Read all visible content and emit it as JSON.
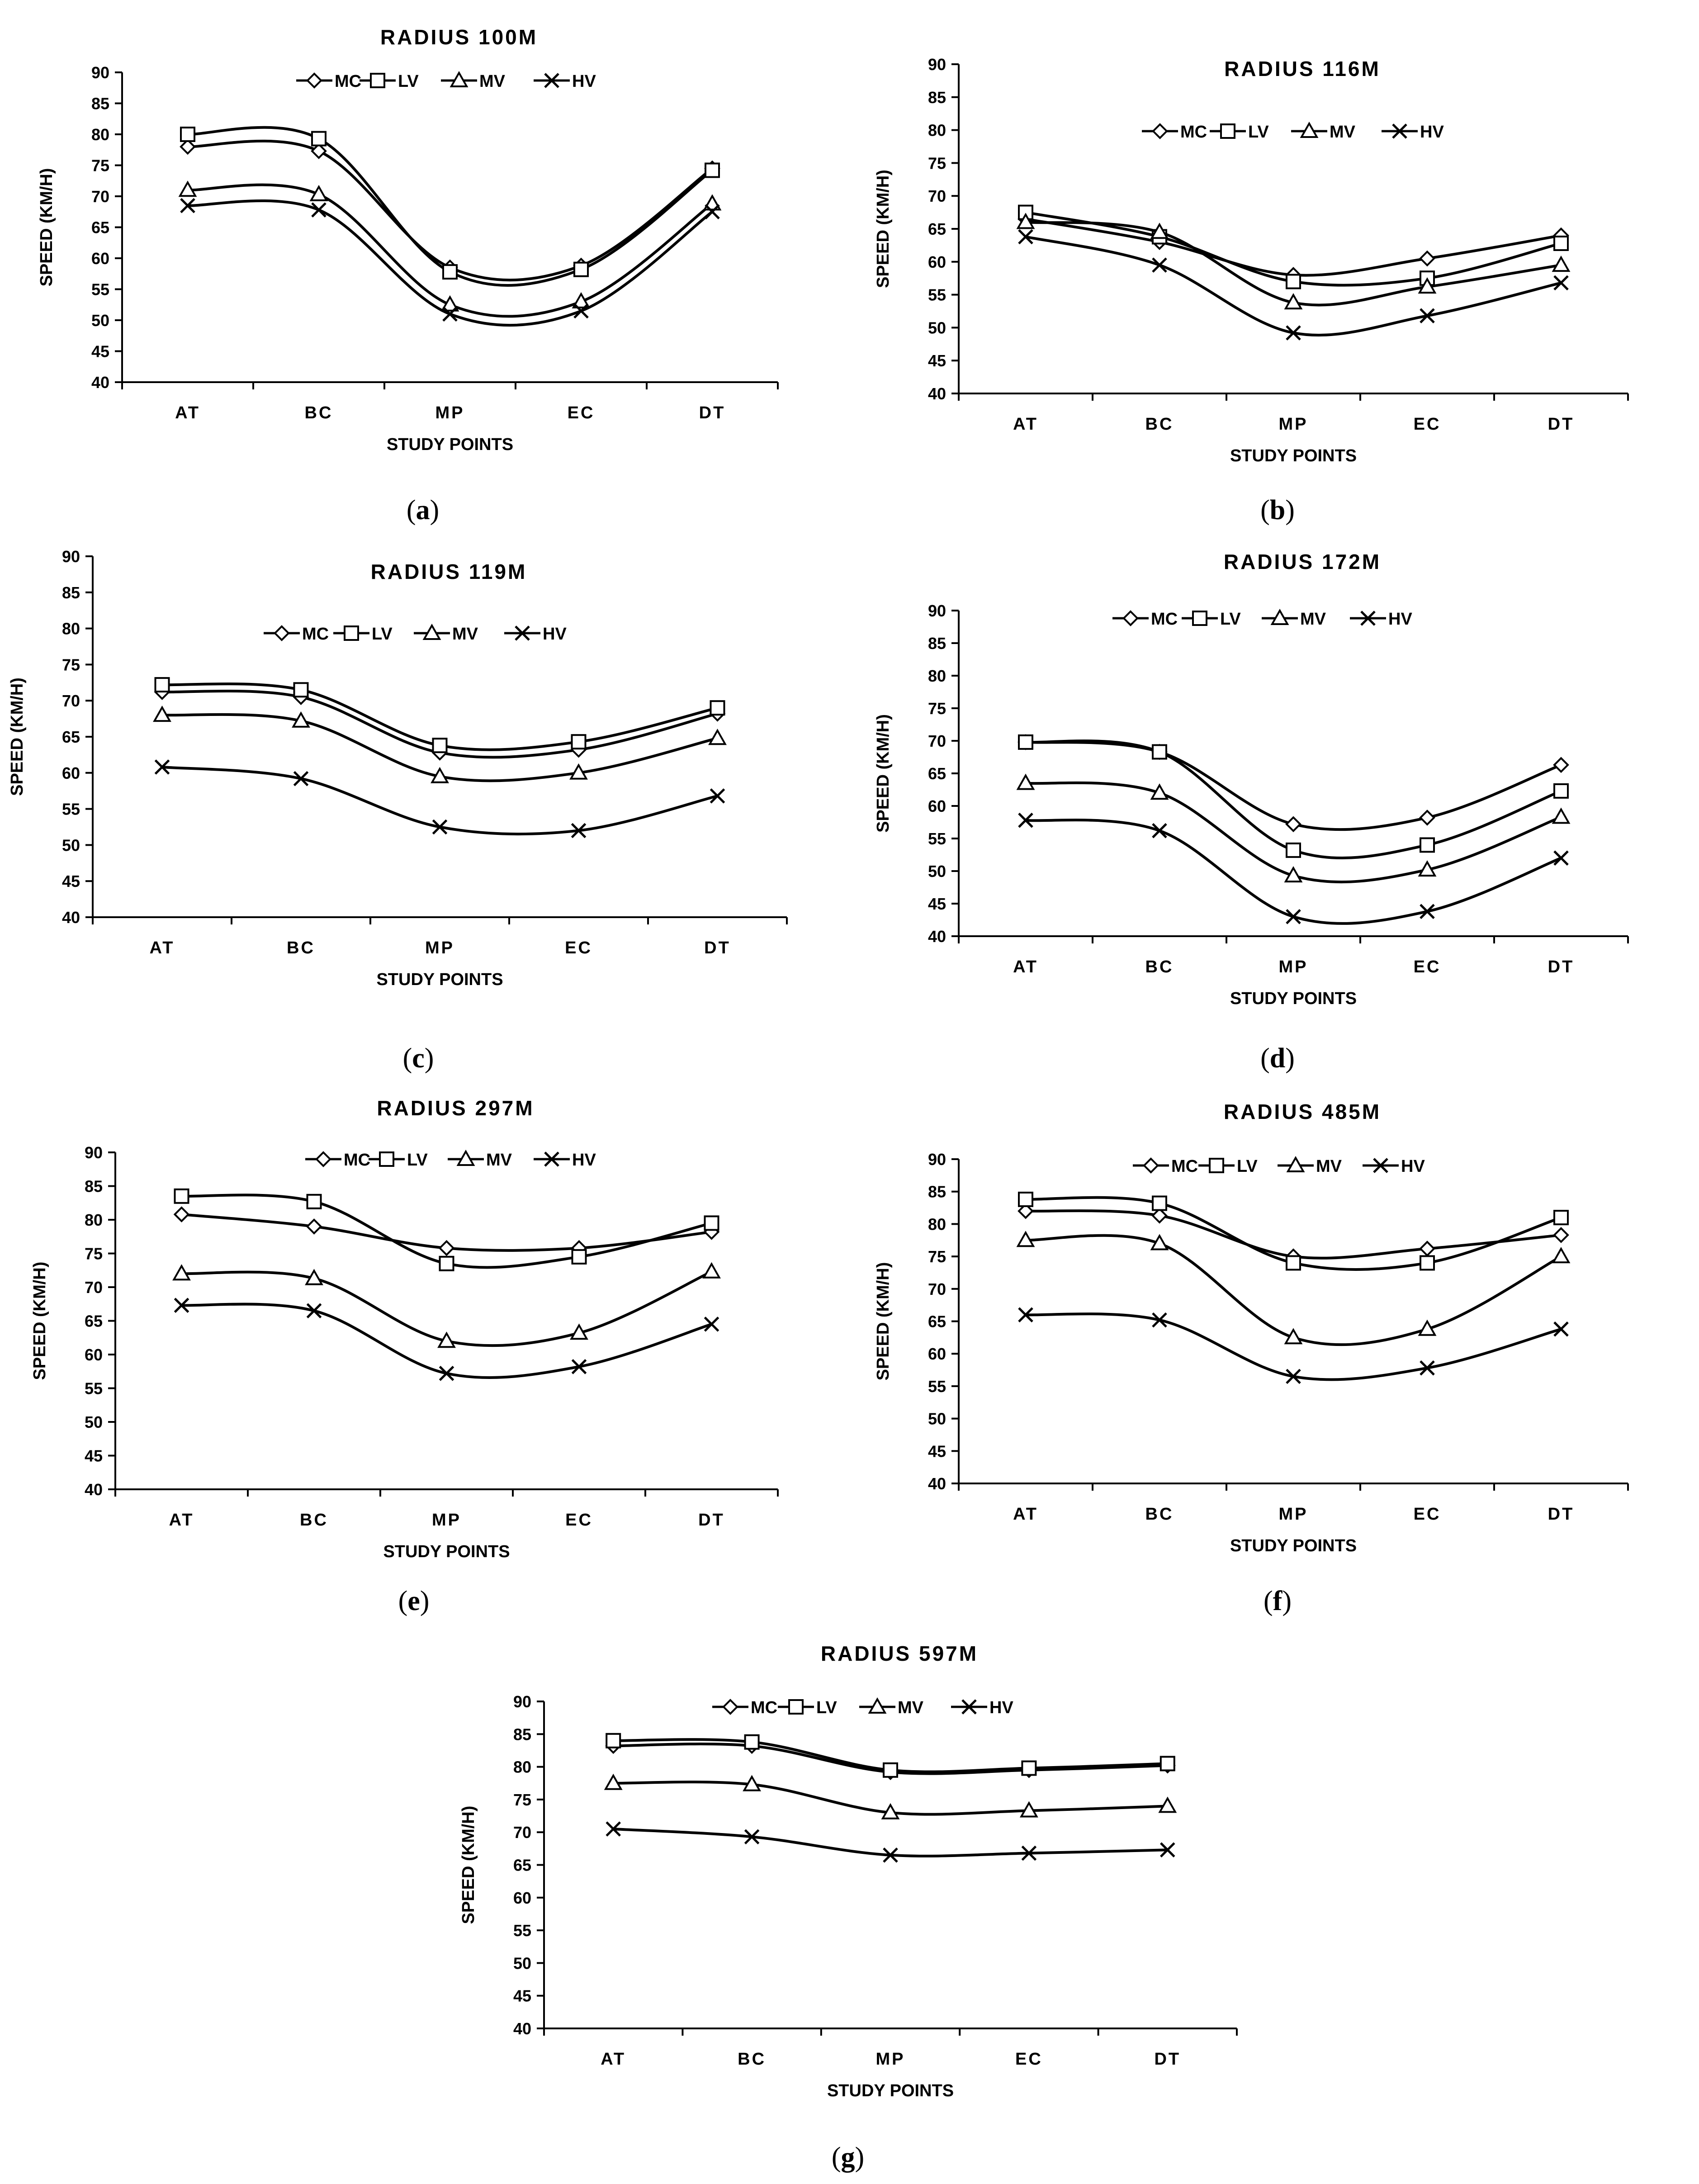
{
  "x_axis_label": "STUDY POINTS",
  "y_axis_label": "SPEED (KM/H)",
  "colors": {
    "line": "#000000",
    "background": "#ffffff"
  },
  "chart_data": [
    {
      "type": "line",
      "caption": "a",
      "title": "RADIUS 100M",
      "xlabel": "STUDY POINTS",
      "ylabel": "SPEED (KM/H)",
      "categories": [
        "AT",
        "BC",
        "MP",
        "EC",
        "DT"
      ],
      "ylim": [
        40,
        90
      ],
      "yticks": [
        40,
        45,
        50,
        55,
        60,
        65,
        70,
        75,
        80,
        85,
        90
      ],
      "series": [
        {
          "name": "MC",
          "marker": "diamond",
          "values": [
            78,
            77.3,
            58.5,
            58.8,
            74.5
          ]
        },
        {
          "name": "LV",
          "marker": "square",
          "values": [
            80,
            79.3,
            57.8,
            58.2,
            74.2
          ]
        },
        {
          "name": "MV",
          "marker": "triangle",
          "values": [
            71,
            70.3,
            52.5,
            53,
            68.8
          ]
        },
        {
          "name": "HV",
          "marker": "x",
          "values": [
            68.5,
            67.8,
            51,
            51.5,
            67.5
          ]
        }
      ]
    },
    {
      "type": "line",
      "caption": "b",
      "title": "RADIUS 116M",
      "xlabel": "STUDY POINTS",
      "ylabel": "SPEED (KM/H)",
      "categories": [
        "AT",
        "BC",
        "MP",
        "EC",
        "DT"
      ],
      "ylim": [
        40,
        90
      ],
      "yticks": [
        40,
        45,
        50,
        55,
        60,
        65,
        70,
        75,
        80,
        85,
        90
      ],
      "series": [
        {
          "name": "MC",
          "marker": "diamond",
          "values": [
            66.5,
            63,
            58,
            60.5,
            64
          ]
        },
        {
          "name": "LV",
          "marker": "square",
          "values": [
            67.5,
            63.8,
            57,
            57.5,
            62.8
          ]
        },
        {
          "name": "MV",
          "marker": "triangle",
          "values": [
            66,
            64.5,
            53.8,
            56.2,
            59.5
          ]
        },
        {
          "name": "HV",
          "marker": "x",
          "values": [
            63.8,
            59.5,
            49.2,
            51.8,
            56.8
          ]
        }
      ]
    },
    {
      "type": "line",
      "caption": "c",
      "title": "RADIUS 119M",
      "xlabel": "STUDY POINTS",
      "ylabel": "SPEED (KM/H)",
      "categories": [
        "AT",
        "BC",
        "MP",
        "EC",
        "DT"
      ],
      "ylim": [
        40,
        90
      ],
      "yticks": [
        40,
        45,
        50,
        55,
        60,
        65,
        70,
        75,
        80,
        85,
        90
      ],
      "series": [
        {
          "name": "MC",
          "marker": "diamond",
          "values": [
            71.2,
            70.5,
            62.8,
            63.2,
            68.2
          ]
        },
        {
          "name": "LV",
          "marker": "square",
          "values": [
            72.2,
            71.5,
            63.8,
            64.3,
            69
          ]
        },
        {
          "name": "MV",
          "marker": "triangle",
          "values": [
            68,
            67.2,
            59.5,
            60,
            64.8
          ]
        },
        {
          "name": "HV",
          "marker": "x",
          "values": [
            60.8,
            59.2,
            52.5,
            52,
            56.8
          ]
        }
      ]
    },
    {
      "type": "line",
      "caption": "d",
      "title": "RADIUS 172M",
      "xlabel": "STUDY POINTS",
      "ylabel": "SPEED (KM/H)",
      "categories": [
        "AT",
        "BC",
        "MP",
        "EC",
        "DT"
      ],
      "ylim": [
        40,
        90
      ],
      "yticks": [
        40,
        45,
        50,
        55,
        60,
        65,
        70,
        75,
        80,
        85,
        90
      ],
      "series": [
        {
          "name": "MC",
          "marker": "diamond",
          "values": [
            69.8,
            68.3,
            57.2,
            58.2,
            66.3
          ]
        },
        {
          "name": "LV",
          "marker": "square",
          "values": [
            69.8,
            68.3,
            53.2,
            54,
            62.3
          ]
        },
        {
          "name": "MV",
          "marker": "triangle",
          "values": [
            63.5,
            62,
            49.3,
            50.2,
            58.3
          ]
        },
        {
          "name": "HV",
          "marker": "x",
          "values": [
            57.8,
            56.2,
            43,
            43.8,
            52
          ]
        }
      ]
    },
    {
      "type": "line",
      "caption": "e",
      "title": "RADIUS 297M",
      "xlabel": "STUDY POINTS",
      "ylabel": "SPEED (KM/H)",
      "categories": [
        "AT",
        "BC",
        "MP",
        "EC",
        "DT"
      ],
      "ylim": [
        40,
        90
      ],
      "yticks": [
        40,
        45,
        50,
        55,
        60,
        65,
        70,
        75,
        80,
        85,
        90
      ],
      "series": [
        {
          "name": "MC",
          "marker": "diamond",
          "values": [
            80.8,
            79,
            75.8,
            75.8,
            78.2
          ]
        },
        {
          "name": "LV",
          "marker": "square",
          "values": [
            83.5,
            82.7,
            73.5,
            74.5,
            79.5
          ]
        },
        {
          "name": "MV",
          "marker": "triangle",
          "values": [
            72,
            71.3,
            62,
            63.2,
            72.3
          ]
        },
        {
          "name": "HV",
          "marker": "x",
          "values": [
            67.3,
            66.5,
            57.2,
            58.2,
            64.5
          ]
        }
      ]
    },
    {
      "type": "line",
      "caption": "f",
      "title": "RADIUS 485M",
      "xlabel": "STUDY POINTS",
      "ylabel": "SPEED (KM/H)",
      "categories": [
        "AT",
        "BC",
        "MP",
        "EC",
        "DT"
      ],
      "ylim": [
        40,
        90
      ],
      "yticks": [
        40,
        45,
        50,
        55,
        60,
        65,
        70,
        75,
        80,
        85,
        90
      ],
      "series": [
        {
          "name": "MC",
          "marker": "diamond",
          "values": [
            82,
            81.3,
            75,
            76.2,
            78.3
          ]
        },
        {
          "name": "LV",
          "marker": "square",
          "values": [
            83.8,
            83.2,
            74,
            74,
            81
          ]
        },
        {
          "name": "MV",
          "marker": "triangle",
          "values": [
            77.5,
            77,
            62.5,
            63.8,
            75
          ]
        },
        {
          "name": "HV",
          "marker": "x",
          "values": [
            66,
            65.2,
            56.5,
            57.8,
            63.8
          ]
        }
      ]
    },
    {
      "type": "line",
      "caption": "g",
      "title": "RADIUS 597M",
      "xlabel": "STUDY POINTS",
      "ylabel": "SPEED (KM/H)",
      "categories": [
        "AT",
        "BC",
        "MP",
        "EC",
        "DT"
      ],
      "ylim": [
        40,
        90
      ],
      "yticks": [
        40,
        45,
        50,
        55,
        60,
        65,
        70,
        75,
        80,
        85,
        90
      ],
      "series": [
        {
          "name": "MC",
          "marker": "diamond",
          "values": [
            83.2,
            83.2,
            79.2,
            79.5,
            80.2
          ]
        },
        {
          "name": "LV",
          "marker": "square",
          "values": [
            84,
            83.8,
            79.5,
            79.8,
            80.5
          ]
        },
        {
          "name": "MV",
          "marker": "triangle",
          "values": [
            77.5,
            77.3,
            73,
            73.3,
            74
          ]
        },
        {
          "name": "HV",
          "marker": "x",
          "values": [
            70.5,
            69.3,
            66.5,
            66.8,
            67.3
          ]
        }
      ]
    }
  ]
}
